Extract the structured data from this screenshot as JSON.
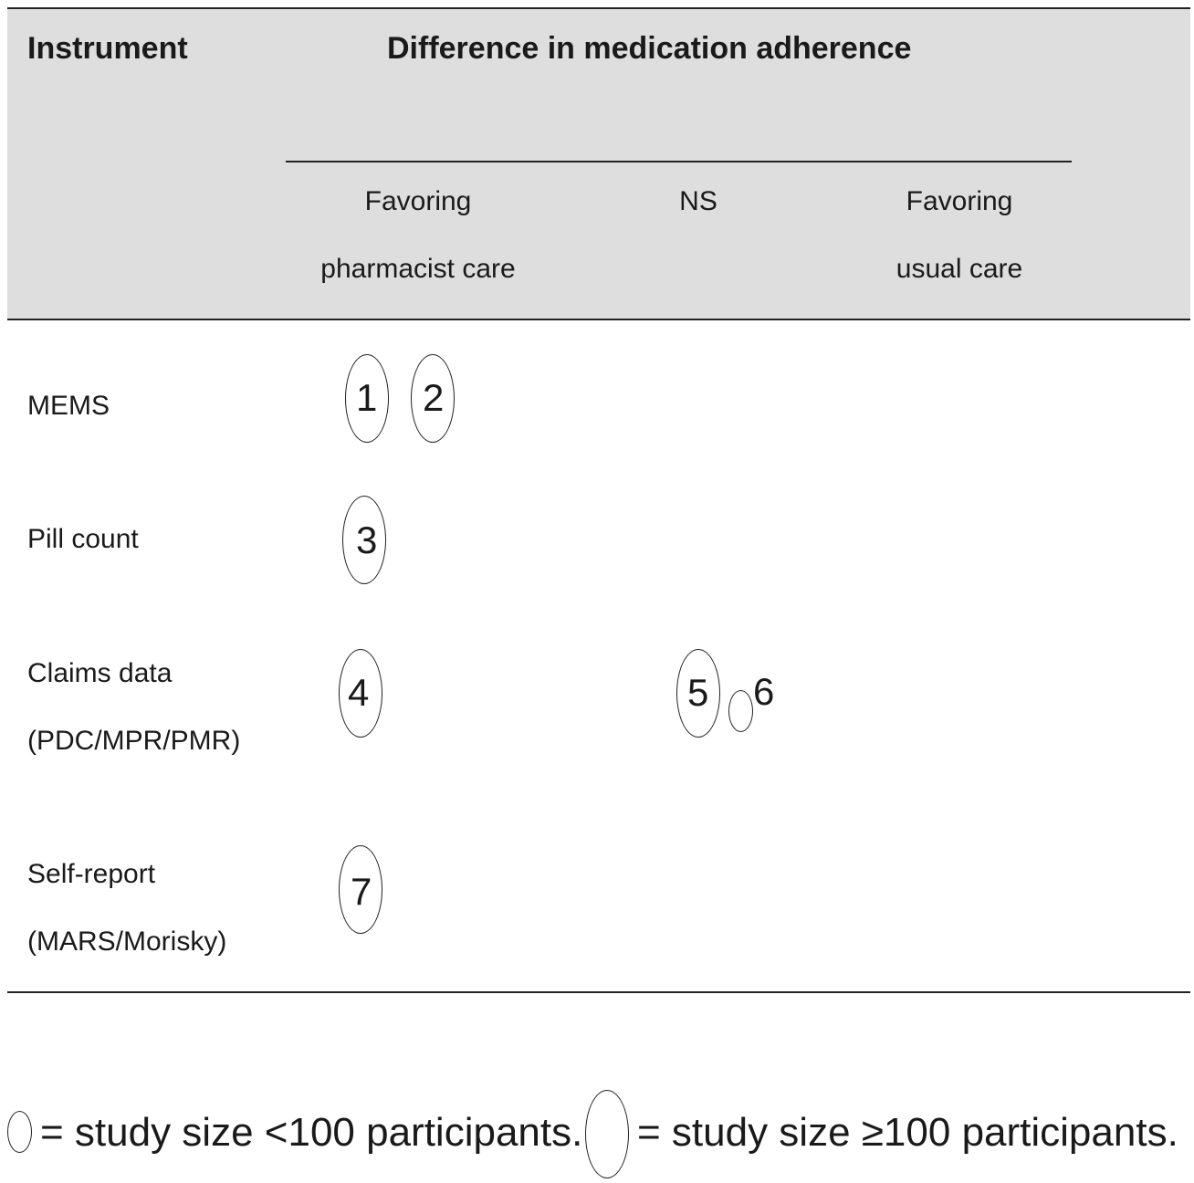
{
  "header": {
    "instrument": "Instrument",
    "difference": "Difference in medication adherence",
    "col_pharmacist_line1": "Favoring",
    "col_pharmacist_line2": "pharmacist care",
    "col_ns": "NS",
    "col_usual_line1": "Favoring",
    "col_usual_line2": "usual care"
  },
  "rows": [
    {
      "label_line1": "MEMS",
      "label_line2": ""
    },
    {
      "label_line1": "Pill count",
      "label_line2": ""
    },
    {
      "label_line1": "Claims data",
      "label_line2": "(PDC/MPR/PMR)"
    },
    {
      "label_line1": "Self-report",
      "label_line2": "(MARS/Morisky)"
    }
  ],
  "studies": [
    {
      "id": "1",
      "row": "MEMS",
      "column": "Favoring pharmacist care",
      "size": "large"
    },
    {
      "id": "2",
      "row": "MEMS",
      "column": "Favoring pharmacist care",
      "size": "large"
    },
    {
      "id": "3",
      "row": "Pill count",
      "column": "Favoring pharmacist care",
      "size": "large"
    },
    {
      "id": "4",
      "row": "Claims data",
      "column": "Favoring pharmacist care",
      "size": "large"
    },
    {
      "id": "5",
      "row": "Claims data",
      "column": "NS",
      "size": "large"
    },
    {
      "id": "6",
      "row": "Claims data",
      "column": "NS",
      "size": "small"
    },
    {
      "id": "7",
      "row": "Self-report",
      "column": "Favoring pharmacist care",
      "size": "large"
    }
  ],
  "legend": {
    "small_text": "= study size <100 participants.",
    "large_text": "= study size ≥100 participants."
  }
}
